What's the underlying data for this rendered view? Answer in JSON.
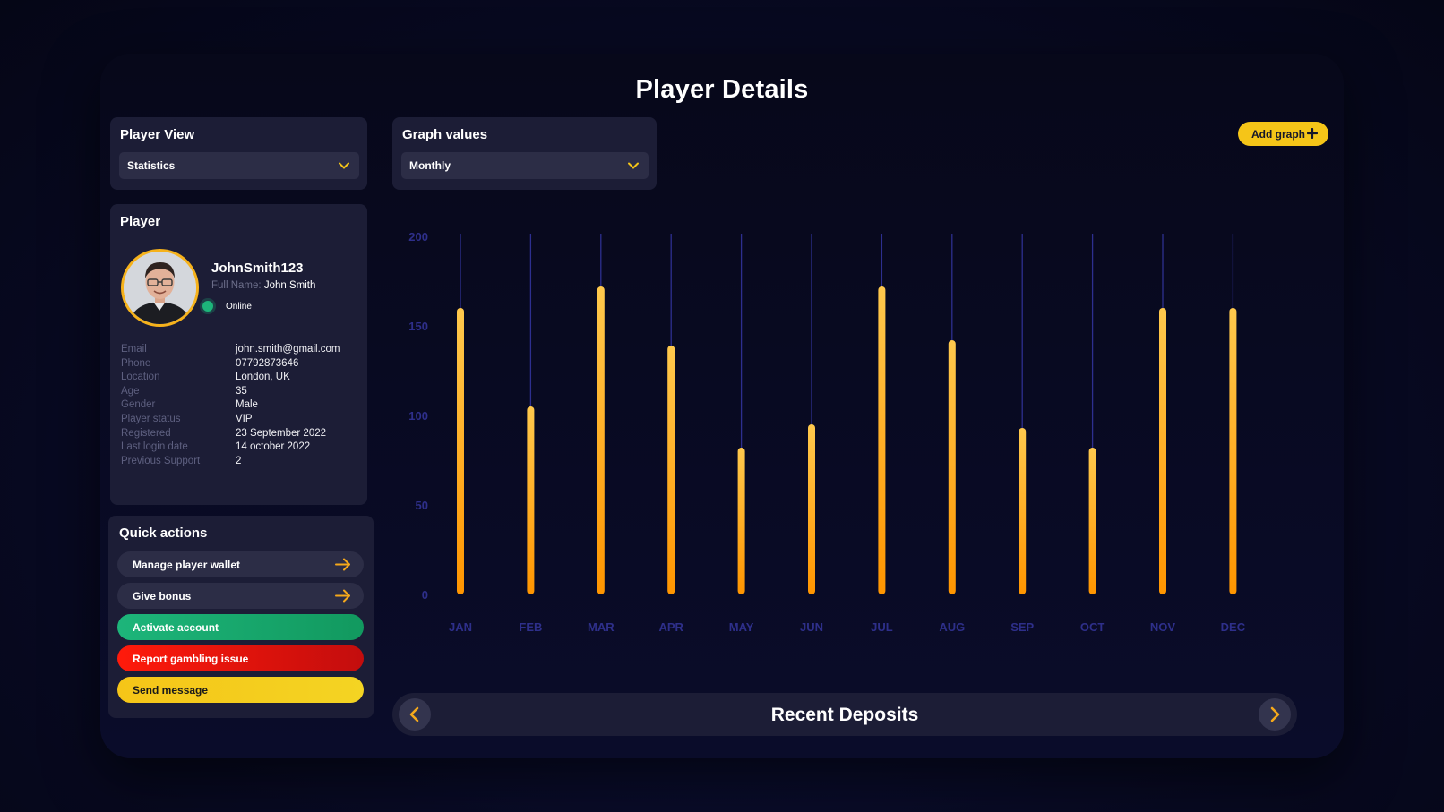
{
  "page": {
    "title": "Player Details"
  },
  "player_view": {
    "title": "Player View",
    "selected": "Statistics"
  },
  "graph_values": {
    "title": "Graph values",
    "selected": "Monthly"
  },
  "add_graph": {
    "label": "Add graph"
  },
  "player": {
    "title": "Player",
    "username": "JohnSmith123",
    "full_name_label": "Full Name:",
    "full_name": "John Smith",
    "status": "Online",
    "details": [
      {
        "key": "Email",
        "value": "john.smith@gmail.com"
      },
      {
        "key": "Phone",
        "value": "07792873646"
      },
      {
        "key": "Location",
        "value": "London, UK"
      },
      {
        "key": "Age",
        "value": "35"
      },
      {
        "key": "Gender",
        "value": "Male"
      },
      {
        "key": "Player status",
        "value": "VIP"
      },
      {
        "key": "Registered",
        "value": "23 September 2022"
      },
      {
        "key": "Last login date",
        "value": "14 october 2022"
      },
      {
        "key": "Previous Support",
        "value": "2"
      }
    ]
  },
  "quick_actions": {
    "title": "Quick actions",
    "buttons": [
      {
        "label": "Manage player wallet",
        "style": "dark",
        "arrow": true
      },
      {
        "label": "Give bonus",
        "style": "dark",
        "arrow": true
      },
      {
        "label": "Activate account",
        "style": "green",
        "arrow": false
      },
      {
        "label": "Report gambling issue",
        "style": "red",
        "arrow": false
      },
      {
        "label": "Send message",
        "style": "yellow",
        "arrow": false
      }
    ]
  },
  "recent_deposits": {
    "title": "Recent Deposits"
  },
  "colors": {
    "accent": "#f5c518",
    "bar_top": "#ffc94d",
    "bar_bottom": "#ff9500",
    "axis_text": "#2e2f8a",
    "online": "#1db57a"
  },
  "chart_data": {
    "type": "bar",
    "categories": [
      "JAN",
      "FEB",
      "MAR",
      "APR",
      "MAY",
      "JUN",
      "JUL",
      "AUG",
      "SEP",
      "OCT",
      "NOV",
      "DEC"
    ],
    "values": [
      160,
      105,
      172,
      139,
      82,
      95,
      172,
      142,
      93,
      82,
      160,
      160
    ],
    "yticks": [
      0,
      50,
      100,
      150,
      200
    ],
    "ylim": [
      0,
      200
    ],
    "title": "",
    "xlabel": "",
    "ylabel": ""
  }
}
